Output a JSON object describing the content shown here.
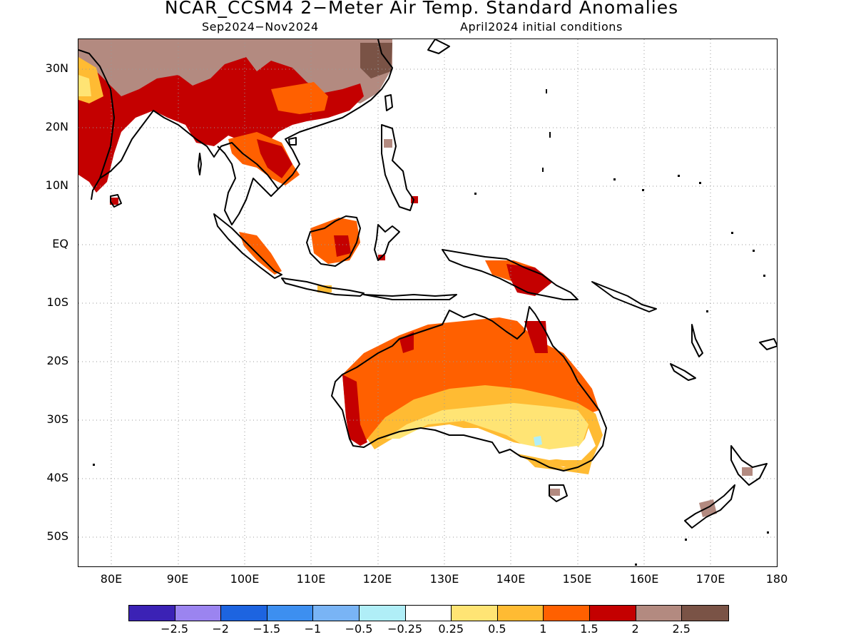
{
  "title": "NCAR_CCSM4 2−Meter Air Temp. Standard Anomalies",
  "subtitle_left": "Sep2024−Nov2024",
  "subtitle_right": "April2024 initial conditions",
  "map": {
    "projection": "lat-lon",
    "lon_range": [
      75,
      180
    ],
    "lat_range": [
      -55,
      35
    ],
    "grid": "dotted",
    "lat_labels": [
      "30N",
      "20N",
      "10N",
      "EQ",
      "10S",
      "20S",
      "30S",
      "40S",
      "50S"
    ],
    "lon_labels": [
      "80E",
      "90E",
      "100E",
      "110E",
      "120E",
      "130E",
      "140E",
      "150E",
      "160E",
      "170E",
      "180"
    ],
    "regions": [
      {
        "name": "Indian subcontinent",
        "anomaly": "1.5 to 2",
        "color": "#c40000"
      },
      {
        "name": "Tibet / southern China",
        "anomaly": "2 to 2.5",
        "color": "#b38a80"
      },
      {
        "name": "Indochina",
        "anomaly": "1 to 2",
        "color": "#ff6000"
      },
      {
        "name": "Borneo",
        "anomaly": "1 to 2",
        "color": "#ff6000"
      },
      {
        "name": "New Guinea",
        "anomaly": "1.5 to 2",
        "color": "#c40000"
      },
      {
        "name": "Northern Australia",
        "anomaly": "1 to 1.5",
        "color": "#ff6000"
      },
      {
        "name": "Central Australia",
        "anomaly": "0.5 to 1",
        "color": "#ffbb33"
      },
      {
        "name": "Southern Australia",
        "anomaly": "-0.25 to 0.25",
        "color": "#ffffff"
      }
    ]
  },
  "legend": {
    "colors": [
      "#3b22b5",
      "#9b84f0",
      "#1d64e0",
      "#3d8ff0",
      "#79b4f5",
      "#b0eef7",
      "#ffffff",
      "#ffe474",
      "#ffbb33",
      "#ff6000",
      "#c40000",
      "#b38a80",
      "#7a5346"
    ],
    "ticks": [
      "−2.5",
      "−2",
      "−1.5",
      "−1",
      "−0.5",
      "−0.25",
      "0.25",
      "0.5",
      "1",
      "1.5",
      "2",
      "2.5"
    ]
  }
}
